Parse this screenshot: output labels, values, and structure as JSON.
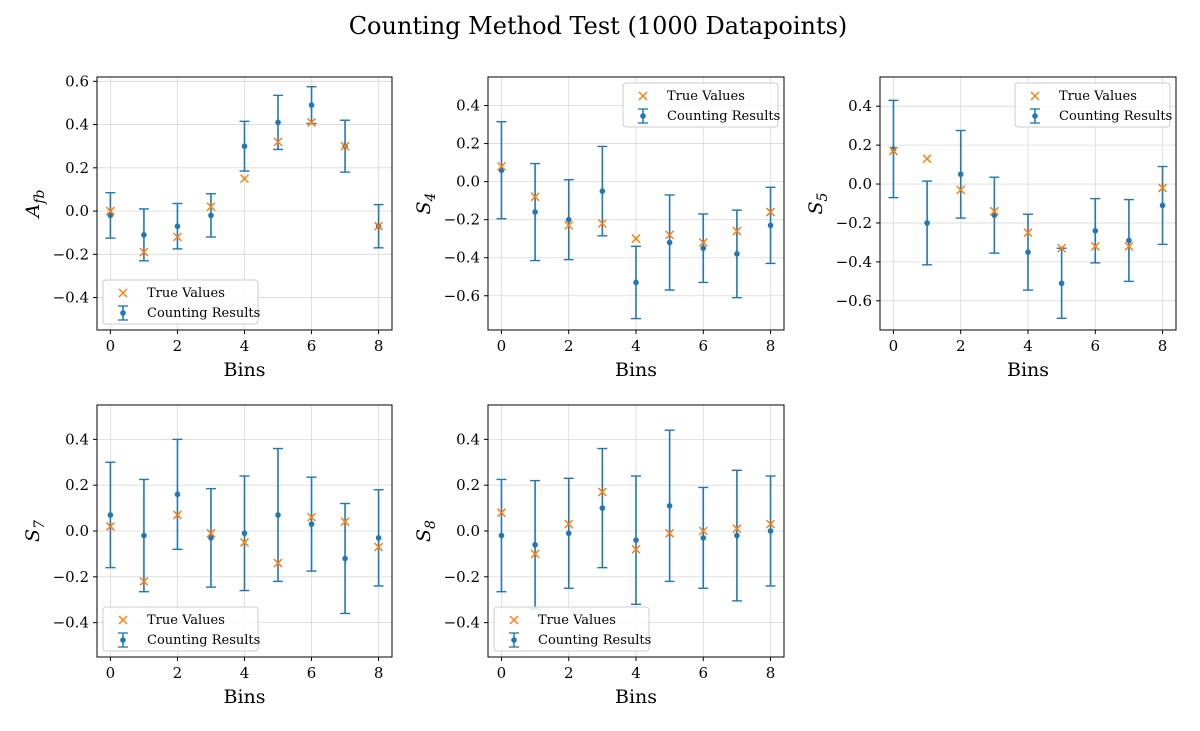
{
  "figure": {
    "title": "Counting Method Test (1000 Datapoints)",
    "colors": {
      "counting": "#1f77b4",
      "true": "#ff7f0e",
      "grid": "#d9d9d9"
    }
  },
  "chart_data": [
    {
      "type": "scatter",
      "ylabel": "A_fb",
      "xlabel": "Bins",
      "ylim": [
        -0.55,
        0.62
      ],
      "xlim": [
        -0.4,
        8.4
      ],
      "yticks": [
        -0.4,
        -0.2,
        0.0,
        0.2,
        0.4,
        0.6
      ],
      "xticks": [
        0,
        2,
        4,
        6,
        8
      ],
      "grid": true,
      "legend_position": "lower-left",
      "legend": [
        "True Values",
        "Counting Results"
      ],
      "x": [
        0,
        1,
        2,
        3,
        4,
        5,
        6,
        7,
        8
      ],
      "series": [
        {
          "name": "True Values",
          "marker": "x",
          "values": [
            0.0,
            -0.19,
            -0.12,
            0.02,
            0.15,
            0.32,
            0.41,
            0.3,
            -0.07
          ]
        },
        {
          "name": "Counting Results",
          "marker": "o",
          "values": [
            -0.02,
            -0.11,
            -0.07,
            -0.02,
            0.3,
            0.41,
            0.49,
            0.3,
            -0.07
          ],
          "errors": [
            0.105,
            0.12,
            0.105,
            0.1,
            0.115,
            0.125,
            0.085,
            0.12,
            0.1
          ]
        }
      ]
    },
    {
      "type": "scatter",
      "ylabel": "S_4",
      "xlabel": "Bins",
      "ylim": [
        -0.78,
        0.55
      ],
      "xlim": [
        -0.4,
        8.4
      ],
      "yticks": [
        -0.6,
        -0.4,
        -0.2,
        0.0,
        0.2,
        0.4
      ],
      "xticks": [
        0,
        2,
        4,
        6,
        8
      ],
      "grid": true,
      "legend_position": "upper-right",
      "legend": [
        "True Values",
        "Counting Results"
      ],
      "x": [
        0,
        1,
        2,
        3,
        4,
        5,
        6,
        7,
        8
      ],
      "series": [
        {
          "name": "True Values",
          "marker": "x",
          "values": [
            0.08,
            -0.08,
            -0.23,
            -0.22,
            -0.3,
            -0.28,
            -0.32,
            -0.26,
            -0.16
          ]
        },
        {
          "name": "Counting Results",
          "marker": "o",
          "values": [
            0.06,
            -0.16,
            -0.2,
            -0.05,
            -0.53,
            -0.32,
            -0.35,
            -0.38,
            -0.23
          ],
          "errors": [
            0.255,
            0.255,
            0.21,
            0.235,
            0.19,
            0.25,
            0.18,
            0.23,
            0.2
          ]
        }
      ]
    },
    {
      "type": "scatter",
      "ylabel": "S_5",
      "xlabel": "Bins",
      "ylim": [
        -0.75,
        0.55
      ],
      "xlim": [
        -0.4,
        8.4
      ],
      "yticks": [
        -0.6,
        -0.4,
        -0.2,
        0.0,
        0.2,
        0.4
      ],
      "xticks": [
        0,
        2,
        4,
        6,
        8
      ],
      "grid": true,
      "legend_position": "upper-right",
      "legend": [
        "True Values",
        "Counting Results"
      ],
      "x": [
        0,
        1,
        2,
        3,
        4,
        5,
        6,
        7,
        8
      ],
      "series": [
        {
          "name": "True Values",
          "marker": "x",
          "values": [
            0.17,
            0.13,
            -0.03,
            -0.14,
            -0.25,
            -0.33,
            -0.32,
            -0.32,
            -0.02
          ]
        },
        {
          "name": "Counting Results",
          "marker": "o",
          "values": [
            0.18,
            -0.2,
            0.05,
            -0.16,
            -0.35,
            -0.51,
            -0.24,
            -0.29,
            -0.11
          ],
          "errors": [
            0.25,
            0.215,
            0.225,
            0.195,
            0.195,
            0.18,
            0.165,
            0.21,
            0.2
          ]
        }
      ]
    },
    {
      "type": "scatter",
      "ylabel": "S_7",
      "xlabel": "Bins",
      "ylim": [
        -0.55,
        0.55
      ],
      "xlim": [
        -0.4,
        8.4
      ],
      "yticks": [
        -0.4,
        -0.2,
        0.0,
        0.2,
        0.4
      ],
      "xticks": [
        0,
        2,
        4,
        6,
        8
      ],
      "grid": true,
      "legend_position": "lower-left",
      "legend": [
        "True Values",
        "Counting Results"
      ],
      "x": [
        0,
        1,
        2,
        3,
        4,
        5,
        6,
        7,
        8
      ],
      "series": [
        {
          "name": "True Values",
          "marker": "x",
          "values": [
            0.02,
            -0.22,
            0.07,
            -0.01,
            -0.05,
            -0.14,
            0.06,
            0.04,
            -0.07
          ]
        },
        {
          "name": "Counting Results",
          "marker": "o",
          "values": [
            0.07,
            -0.02,
            0.16,
            -0.03,
            -0.01,
            0.07,
            0.03,
            -0.12,
            -0.03
          ],
          "errors": [
            0.23,
            0.245,
            0.24,
            0.215,
            0.25,
            0.29,
            0.205,
            0.24,
            0.21
          ]
        }
      ]
    },
    {
      "type": "scatter",
      "ylabel": "S_8",
      "xlabel": "Bins",
      "ylim": [
        -0.55,
        0.55
      ],
      "xlim": [
        -0.4,
        8.4
      ],
      "yticks": [
        -0.4,
        -0.2,
        0.0,
        0.2,
        0.4
      ],
      "xticks": [
        0,
        2,
        4,
        6,
        8
      ],
      "grid": true,
      "legend_position": "lower-left",
      "legend": [
        "True Values",
        "Counting Results"
      ],
      "x": [
        0,
        1,
        2,
        3,
        4,
        5,
        6,
        7,
        8
      ],
      "series": [
        {
          "name": "True Values",
          "marker": "x",
          "values": [
            0.08,
            -0.1,
            0.03,
            0.17,
            -0.08,
            -0.01,
            0.0,
            0.01,
            0.03
          ]
        },
        {
          "name": "Counting Results",
          "marker": "o",
          "values": [
            -0.02,
            -0.06,
            -0.01,
            0.1,
            -0.04,
            0.11,
            -0.03,
            -0.02,
            0.0
          ],
          "errors": [
            0.245,
            0.28,
            0.24,
            0.26,
            0.28,
            0.33,
            0.22,
            0.285,
            0.24
          ]
        }
      ]
    }
  ]
}
